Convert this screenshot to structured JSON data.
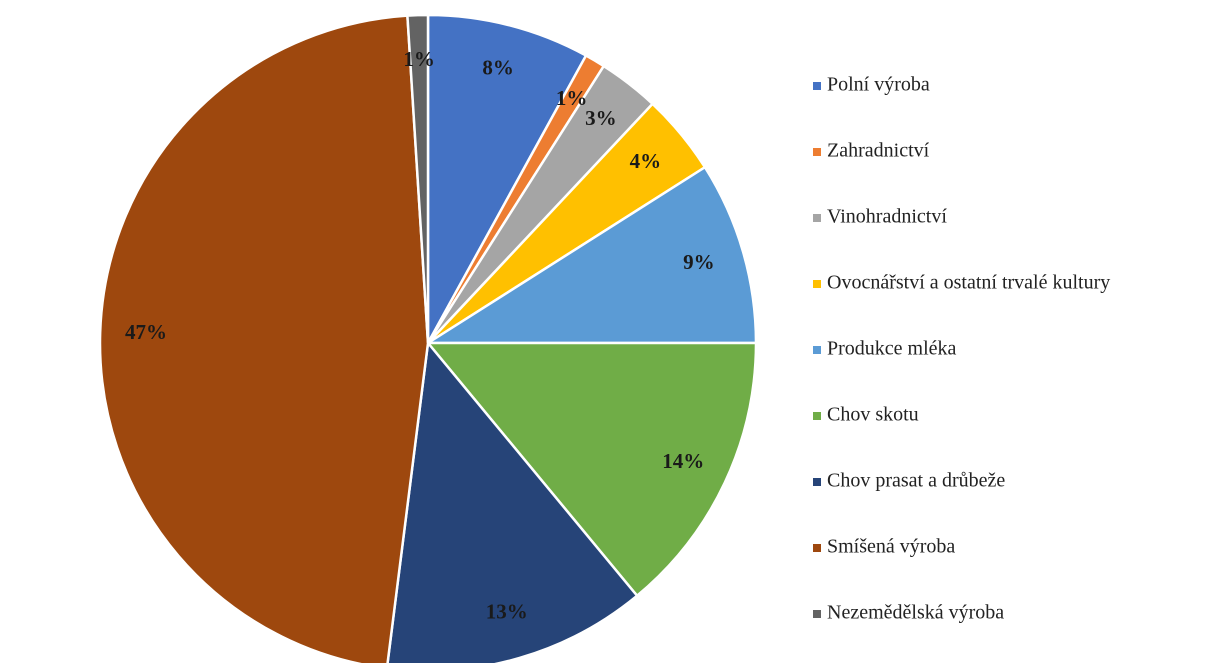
{
  "chart_data": {
    "type": "pie",
    "categories": [
      "Polní výroba",
      "Zahradnictví",
      "Vinohradnictví",
      "Ovocnářství a ostatní trvalé kultury",
      "Produkce mléka",
      "Chov skotu",
      "Chov prasat a drůbeže",
      "Smíšená výroba",
      "Nezemědělská výroba"
    ],
    "values": [
      8,
      1,
      3,
      4,
      9,
      14,
      13,
      47,
      1
    ],
    "value_labels": [
      "8%",
      "1%",
      "3%",
      "4%",
      "9%",
      "14%",
      "13%",
      "47%",
      "1%"
    ],
    "colors": [
      "#4472c4",
      "#ed7d31",
      "#a5a5a5",
      "#ffc000",
      "#5b9bd5",
      "#70ad47",
      "#264478",
      "#9e480e",
      "#636363"
    ],
    "legend": "right"
  }
}
